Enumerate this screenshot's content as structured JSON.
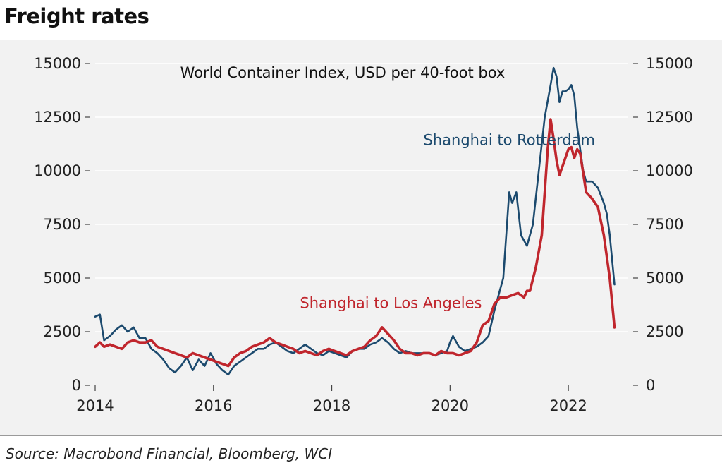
{
  "header": {
    "title": "Freight rates"
  },
  "footer": {
    "source": "Source: Macrobond Financial, Bloomberg, WCI"
  },
  "chart_data": {
    "type": "line",
    "subtitle": "World Container Index, USD per 40-foot box",
    "xlim": [
      2014.0,
      2023.0
    ],
    "ylim": [
      0,
      15000
    ],
    "grid": true,
    "x_ticks": [
      2014,
      2016,
      2018,
      2020,
      2022
    ],
    "x_tick_labels": [
      "2014",
      "2016",
      "2018",
      "2020",
      "2022"
    ],
    "y_ticks": [
      0,
      2500,
      5000,
      7500,
      10000,
      12500,
      15000
    ],
    "y_tick_labels_left": [
      "0",
      "2500",
      "5000",
      "7500",
      "10000",
      "12500",
      "15000"
    ],
    "y_tick_labels_right": [
      "0",
      "2500",
      "5000",
      "7500",
      "10000",
      "12500",
      "15000"
    ],
    "series": [
      {
        "name": "Shanghai to Rotterdam",
        "color": "#1c4a6e",
        "x": [
          2014.0,
          2014.08,
          2014.15,
          2014.25,
          2014.35,
          2014.45,
          2014.55,
          2014.65,
          2014.75,
          2014.85,
          2014.95,
          2015.05,
          2015.15,
          2015.25,
          2015.35,
          2015.45,
          2015.55,
          2015.65,
          2015.75,
          2015.85,
          2015.95,
          2016.05,
          2016.15,
          2016.25,
          2016.35,
          2016.45,
          2016.55,
          2016.65,
          2016.75,
          2016.85,
          2016.95,
          2017.05,
          2017.15,
          2017.25,
          2017.35,
          2017.45,
          2017.55,
          2017.65,
          2017.75,
          2017.85,
          2017.95,
          2018.05,
          2018.15,
          2018.25,
          2018.35,
          2018.45,
          2018.55,
          2018.65,
          2018.75,
          2018.85,
          2018.95,
          2019.05,
          2019.15,
          2019.25,
          2019.35,
          2019.45,
          2019.55,
          2019.65,
          2019.75,
          2019.85,
          2019.95,
          2020.0,
          2020.05,
          2020.15,
          2020.25,
          2020.35,
          2020.45,
          2020.55,
          2020.65,
          2020.75,
          2020.85,
          2020.9,
          2021.0,
          2021.05,
          2021.12,
          2021.2,
          2021.3,
          2021.4,
          2021.5,
          2021.6,
          2021.7,
          2021.75,
          2021.8,
          2021.85,
          2021.9,
          2021.95,
          2022.0,
          2022.05,
          2022.1,
          2022.15,
          2022.2,
          2022.25,
          2022.3,
          2022.4,
          2022.5,
          2022.6,
          2022.65,
          2022.7,
          2022.78
        ],
        "values": [
          3200,
          3300,
          2100,
          2300,
          2600,
          2800,
          2500,
          2700,
          2200,
          2200,
          1700,
          1500,
          1200,
          800,
          600,
          900,
          1300,
          700,
          1200,
          900,
          1500,
          1000,
          700,
          500,
          900,
          1100,
          1300,
          1500,
          1700,
          1700,
          1900,
          2000,
          1800,
          1600,
          1500,
          1700,
          1900,
          1700,
          1500,
          1400,
          1600,
          1500,
          1400,
          1300,
          1600,
          1700,
          1700,
          1900,
          2000,
          2200,
          2000,
          1700,
          1500,
          1600,
          1500,
          1500,
          1500,
          1500,
          1400,
          1500,
          1600,
          2000,
          2300,
          1800,
          1600,
          1700,
          1800,
          2000,
          2300,
          3500,
          4500,
          5000,
          9000,
          8500,
          9000,
          7000,
          6500,
          7500,
          10000,
          12500,
          14000,
          14800,
          14400,
          13200,
          13700,
          13700,
          13800,
          14000,
          13500,
          12000,
          11000,
          10000,
          9500,
          9500,
          9200,
          8500,
          8000,
          7000,
          4700
        ]
      },
      {
        "name": "Shanghai to Los Angeles",
        "color": "#c0262d",
        "x": [
          2014.0,
          2014.08,
          2014.15,
          2014.25,
          2014.35,
          2014.45,
          2014.55,
          2014.65,
          2014.75,
          2014.85,
          2014.95,
          2015.05,
          2015.15,
          2015.25,
          2015.35,
          2015.45,
          2015.55,
          2015.65,
          2015.75,
          2015.85,
          2015.95,
          2016.05,
          2016.15,
          2016.25,
          2016.35,
          2016.45,
          2016.55,
          2016.65,
          2016.75,
          2016.85,
          2016.95,
          2017.05,
          2017.15,
          2017.25,
          2017.35,
          2017.45,
          2017.55,
          2017.65,
          2017.75,
          2017.85,
          2017.95,
          2018.05,
          2018.15,
          2018.25,
          2018.35,
          2018.45,
          2018.55,
          2018.65,
          2018.75,
          2018.85,
          2018.95,
          2019.05,
          2019.15,
          2019.25,
          2019.35,
          2019.45,
          2019.55,
          2019.65,
          2019.75,
          2019.85,
          2019.95,
          2020.05,
          2020.15,
          2020.25,
          2020.35,
          2020.45,
          2020.55,
          2020.65,
          2020.75,
          2020.85,
          2020.95,
          2021.05,
          2021.15,
          2021.25,
          2021.3,
          2021.35,
          2021.45,
          2021.55,
          2021.65,
          2021.7,
          2021.75,
          2021.8,
          2021.85,
          2021.9,
          2022.0,
          2022.05,
          2022.1,
          2022.15,
          2022.2,
          2022.3,
          2022.4,
          2022.5,
          2022.6,
          2022.7,
          2022.78
        ],
        "values": [
          1800,
          2000,
          1800,
          1900,
          1800,
          1700,
          2000,
          2100,
          2000,
          2000,
          2100,
          1800,
          1700,
          1600,
          1500,
          1400,
          1300,
          1500,
          1400,
          1300,
          1200,
          1100,
          1000,
          900,
          1300,
          1500,
          1600,
          1800,
          1900,
          2000,
          2200,
          2000,
          1900,
          1800,
          1700,
          1500,
          1600,
          1500,
          1400,
          1600,
          1700,
          1600,
          1500,
          1400,
          1600,
          1700,
          1800,
          2100,
          2300,
          2700,
          2400,
          2100,
          1700,
          1500,
          1500,
          1400,
          1500,
          1500,
          1400,
          1600,
          1500,
          1500,
          1400,
          1500,
          1600,
          2000,
          2800,
          3000,
          3800,
          4100,
          4100,
          4200,
          4300,
          4100,
          4400,
          4400,
          5500,
          7000,
          11000,
          12400,
          11500,
          10500,
          9800,
          10200,
          11000,
          11100,
          10600,
          11000,
          10800,
          9000,
          8700,
          8300,
          7000,
          5000,
          2700
        ]
      }
    ],
    "annotations": [
      {
        "text": "Shanghai to Rotterdam",
        "x": 2021.0,
        "y": 11200,
        "color": "#1c4a6e"
      },
      {
        "text": "Shanghai to Los Angeles",
        "x": 2019.0,
        "y": 3600,
        "color": "#c0262d"
      }
    ]
  }
}
